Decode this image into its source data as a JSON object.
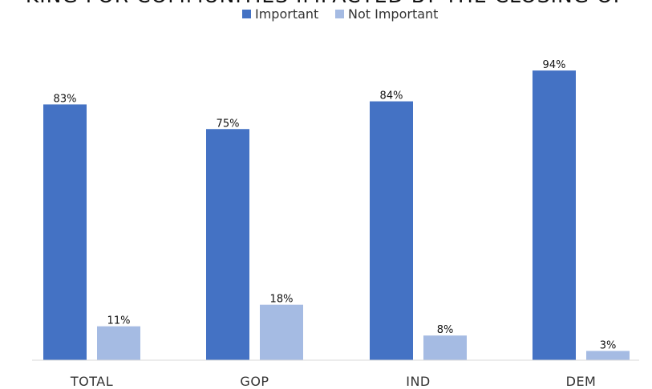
{
  "chart_data": {
    "type": "bar",
    "title": "KING FOR COMMUNITIES IMPACTED BY THE CLOSING OF",
    "categories": [
      "TOTAL",
      "GOP",
      "IND",
      "DEM"
    ],
    "series": [
      {
        "name": "Important",
        "color": "#4472C4",
        "values": [
          83,
          75,
          84,
          94
        ],
        "labels": [
          "83%",
          "75%",
          "84%",
          "94%"
        ]
      },
      {
        "name": "Not Important",
        "color": "#A5BBE3",
        "values": [
          11,
          18,
          8,
          3
        ],
        "labels": [
          "11%",
          "18%",
          "8%",
          "3%"
        ]
      }
    ],
    "ylim": [
      0,
      100
    ],
    "grid": false,
    "legend_position": "top-center",
    "xlabel": "",
    "ylabel": ""
  }
}
